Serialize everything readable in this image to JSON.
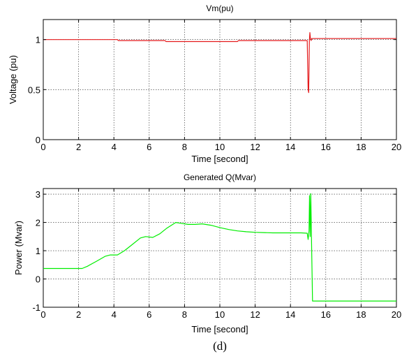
{
  "caption": "(d)",
  "chart_data": [
    {
      "type": "line",
      "title": "Vm(pu)",
      "xlabel": "Time [second]",
      "ylabel": "Voltage (pu)",
      "xlim": [
        0,
        20
      ],
      "ylim": [
        0,
        1.2
      ],
      "xticks": [
        "0",
        "2",
        "4",
        "6",
        "8",
        "10",
        "12",
        "14",
        "16",
        "18",
        "20"
      ],
      "yticks": [
        "0",
        "0.5",
        "1"
      ],
      "ytick_values": [
        0,
        0.5,
        1
      ],
      "grid": true,
      "series": [
        {
          "color": "#e41a1c",
          "x": [
            0,
            4.2,
            4.25,
            6.9,
            6.95,
            11.0,
            11.05,
            14.95,
            15.0,
            15.03,
            15.07,
            15.1,
            15.13,
            15.17,
            15.2,
            16.0,
            20
          ],
          "y": [
            1.0,
            1.0,
            0.99,
            0.99,
            0.98,
            0.98,
            0.99,
            0.99,
            0.5,
            0.47,
            0.99,
            1.07,
            1.01,
            0.99,
            1.01,
            1.01,
            1.01
          ]
        }
      ]
    },
    {
      "type": "line",
      "title": "Generated Q(Mvar)",
      "xlabel": "Time [second]",
      "ylabel": "Power (Mvar)",
      "xlim": [
        0,
        20
      ],
      "ylim": [
        -1,
        3.2
      ],
      "xticks": [
        "0",
        "2",
        "4",
        "6",
        "8",
        "10",
        "12",
        "14",
        "16",
        "18",
        "20"
      ],
      "yticks": [
        "-1",
        "0",
        "1",
        "2",
        "3"
      ],
      "ytick_values": [
        -1,
        0,
        1,
        2,
        3
      ],
      "grid": true,
      "series": [
        {
          "color": "#00ee00",
          "x": [
            0,
            2.2,
            2.5,
            3.0,
            3.5,
            3.8,
            4.2,
            4.6,
            5.0,
            5.5,
            5.8,
            6.2,
            6.6,
            7.0,
            7.5,
            7.8,
            8.2,
            8.6,
            9.0,
            9.5,
            10.0,
            10.5,
            11.0,
            11.5,
            12.0,
            12.5,
            13.0,
            13.5,
            14.0,
            14.6,
            14.95,
            15.0,
            15.05,
            15.08,
            15.12,
            15.15,
            15.2,
            15.25,
            15.3,
            16.0,
            20
          ],
          "y": [
            0.37,
            0.37,
            0.45,
            0.62,
            0.8,
            0.85,
            0.85,
            1.0,
            1.2,
            1.45,
            1.5,
            1.47,
            1.6,
            1.8,
            2.0,
            1.97,
            1.93,
            1.93,
            1.95,
            1.9,
            1.82,
            1.75,
            1.7,
            1.67,
            1.65,
            1.64,
            1.63,
            1.63,
            1.63,
            1.63,
            1.62,
            1.4,
            1.7,
            2.95,
            1.5,
            3.02,
            1.0,
            -0.78,
            -0.78,
            -0.78,
            -0.78
          ]
        }
      ]
    }
  ]
}
